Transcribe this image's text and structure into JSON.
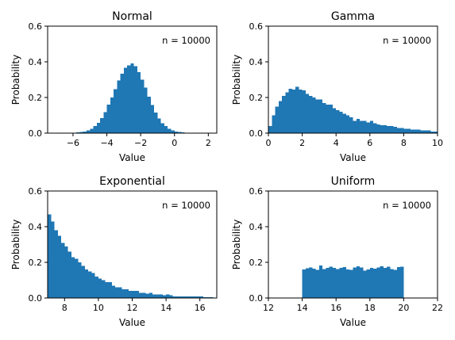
{
  "chart_data": [
    {
      "type": "bar",
      "title": "Normal",
      "xlabel": "Value",
      "ylabel": "Probability",
      "xlim": [
        -7.5,
        2.5
      ],
      "ylim": [
        0,
        0.6
      ],
      "xticks": [
        -6,
        -4,
        -2,
        0,
        2
      ],
      "yticks": [
        0.0,
        0.2,
        0.4,
        0.6
      ],
      "xtick_labels": [
        "−6",
        "−4",
        "−2",
        "0",
        "2"
      ],
      "ytick_labels": [
        "0.0",
        "0.2",
        "0.4",
        "0.6"
      ],
      "annotation": "n = 10000",
      "color": "#1f77b4",
      "bin_edges": [
        -6.6,
        -6.4,
        -6.2,
        -6.0,
        -5.8,
        -5.6,
        -5.4,
        -5.2,
        -5.0,
        -4.8,
        -4.6,
        -4.4,
        -4.2,
        -4.0,
        -3.8,
        -3.6,
        -3.4,
        -3.2,
        -3.0,
        -2.8,
        -2.6,
        -2.4,
        -2.2,
        -2.0,
        -1.8,
        -1.6,
        -1.4,
        -1.2,
        -1.0,
        -0.8,
        -0.6,
        -0.4,
        -0.2,
        0.0,
        0.2,
        0.4,
        0.6,
        0.8,
        1.0,
        1.2,
        1.4,
        1.6,
        1.8,
        2.0,
        2.2
      ],
      "values": [
        0.001,
        0.001,
        0.002,
        0.003,
        0.004,
        0.006,
        0.01,
        0.015,
        0.024,
        0.04,
        0.058,
        0.084,
        0.118,
        0.159,
        0.201,
        0.246,
        0.295,
        0.334,
        0.367,
        0.381,
        0.392,
        0.375,
        0.343,
        0.3,
        0.256,
        0.205,
        0.158,
        0.115,
        0.082,
        0.055,
        0.04,
        0.025,
        0.015,
        0.009,
        0.006,
        0.004,
        0.002,
        0.001,
        0.001,
        0.001,
        0.0005,
        0.0005,
        0.0005,
        0.0005
      ]
    },
    {
      "type": "bar",
      "title": "Gamma",
      "xlabel": "Value",
      "ylabel": "Probability",
      "xlim": [
        0,
        10
      ],
      "ylim": [
        0,
        0.6
      ],
      "xticks": [
        0,
        2,
        4,
        6,
        8,
        10
      ],
      "yticks": [
        0.0,
        0.2,
        0.4,
        0.6
      ],
      "xtick_labels": [
        "0",
        "2",
        "4",
        "6",
        "8",
        "10"
      ],
      "ytick_labels": [
        "0.0",
        "0.2",
        "0.4",
        "0.6"
      ],
      "annotation": "n = 10000",
      "color": "#1f77b4",
      "bin_edges": [
        0.0,
        0.2,
        0.4,
        0.6,
        0.8,
        1.0,
        1.2,
        1.4,
        1.6,
        1.8,
        2.0,
        2.2,
        2.4,
        2.6,
        2.8,
        3.0,
        3.2,
        3.4,
        3.6,
        3.8,
        4.0,
        4.2,
        4.4,
        4.6,
        4.8,
        5.0,
        5.2,
        5.4,
        5.6,
        5.8,
        6.0,
        6.2,
        6.4,
        6.6,
        6.8,
        7.0,
        7.2,
        7.4,
        7.6,
        7.8,
        8.0,
        8.2,
        8.4,
        8.6,
        8.8,
        9.0,
        9.2,
        9.4,
        9.6,
        9.8,
        10.0
      ],
      "values": [
        0.04,
        0.1,
        0.15,
        0.18,
        0.21,
        0.23,
        0.25,
        0.245,
        0.26,
        0.245,
        0.24,
        0.22,
        0.21,
        0.2,
        0.19,
        0.19,
        0.17,
        0.16,
        0.16,
        0.14,
        0.13,
        0.12,
        0.11,
        0.1,
        0.09,
        0.07,
        0.08,
        0.07,
        0.07,
        0.06,
        0.07,
        0.055,
        0.05,
        0.045,
        0.045,
        0.04,
        0.04,
        0.035,
        0.03,
        0.03,
        0.025,
        0.025,
        0.02,
        0.02,
        0.02,
        0.015,
        0.015,
        0.015,
        0.01,
        0.01
      ]
    },
    {
      "type": "bar",
      "title": "Exponential",
      "xlabel": "Value",
      "ylabel": "Probability",
      "xlim": [
        7,
        17
      ],
      "ylim": [
        0,
        0.6
      ],
      "xticks": [
        8,
        10,
        12,
        14,
        16
      ],
      "yticks": [
        0.0,
        0.2,
        0.4,
        0.6
      ],
      "xtick_labels": [
        "8",
        "10",
        "12",
        "14",
        "16"
      ],
      "ytick_labels": [
        "0.0",
        "0.2",
        "0.4",
        "0.6"
      ],
      "annotation": "n = 10000",
      "color": "#1f77b4",
      "bin_edges": [
        7.0,
        7.2,
        7.4,
        7.6,
        7.8,
        8.0,
        8.2,
        8.4,
        8.6,
        8.8,
        9.0,
        9.2,
        9.4,
        9.6,
        9.8,
        10.0,
        10.2,
        10.4,
        10.6,
        10.8,
        11.0,
        11.2,
        11.4,
        11.6,
        11.8,
        12.0,
        12.2,
        12.4,
        12.6,
        12.8,
        13.0,
        13.2,
        13.4,
        13.6,
        13.8,
        14.0,
        14.2,
        14.4,
        14.6,
        14.8,
        15.0,
        15.2,
        15.4,
        15.6,
        15.8,
        16.0,
        16.2,
        16.4,
        16.6,
        16.8
      ],
      "values": [
        0.47,
        0.43,
        0.38,
        0.35,
        0.31,
        0.29,
        0.26,
        0.23,
        0.22,
        0.2,
        0.18,
        0.16,
        0.15,
        0.14,
        0.12,
        0.11,
        0.1,
        0.09,
        0.09,
        0.07,
        0.06,
        0.06,
        0.05,
        0.05,
        0.04,
        0.04,
        0.04,
        0.03,
        0.03,
        0.025,
        0.03,
        0.02,
        0.02,
        0.02,
        0.015,
        0.02,
        0.015,
        0.01,
        0.01,
        0.01,
        0.01,
        0.01,
        0.01,
        0.008,
        0.008,
        0.01,
        0.005,
        0.005,
        0.005
      ]
    },
    {
      "type": "bar",
      "title": "Uniform",
      "xlabel": "Value",
      "ylabel": "Probability",
      "xlim": [
        12,
        22
      ],
      "ylim": [
        0,
        0.6
      ],
      "xticks": [
        12,
        14,
        16,
        18,
        20,
        22
      ],
      "yticks": [
        0.0,
        0.2,
        0.4,
        0.6
      ],
      "xtick_labels": [
        "12",
        "14",
        "16",
        "18",
        "20",
        "22"
      ],
      "ytick_labels": [
        "0.0",
        "0.2",
        "0.4",
        "0.6"
      ],
      "annotation": "n = 10000",
      "color": "#1f77b4",
      "bin_edges": [
        14.0,
        14.2,
        14.4,
        14.6,
        14.8,
        15.0,
        15.2,
        15.4,
        15.6,
        15.8,
        16.0,
        16.2,
        16.4,
        16.6,
        16.8,
        17.0,
        17.2,
        17.4,
        17.6,
        17.8,
        18.0,
        18.2,
        18.4,
        18.6,
        18.8,
        19.0,
        19.2,
        19.4,
        19.6,
        19.8,
        20.0
      ],
      "values": [
        0.16,
        0.167,
        0.172,
        0.165,
        0.158,
        0.183,
        0.162,
        0.17,
        0.176,
        0.168,
        0.162,
        0.17,
        0.174,
        0.161,
        0.157,
        0.172,
        0.178,
        0.171,
        0.153,
        0.16,
        0.168,
        0.164,
        0.172,
        0.177,
        0.169,
        0.175,
        0.163,
        0.158,
        0.174,
        0.176
      ]
    }
  ]
}
